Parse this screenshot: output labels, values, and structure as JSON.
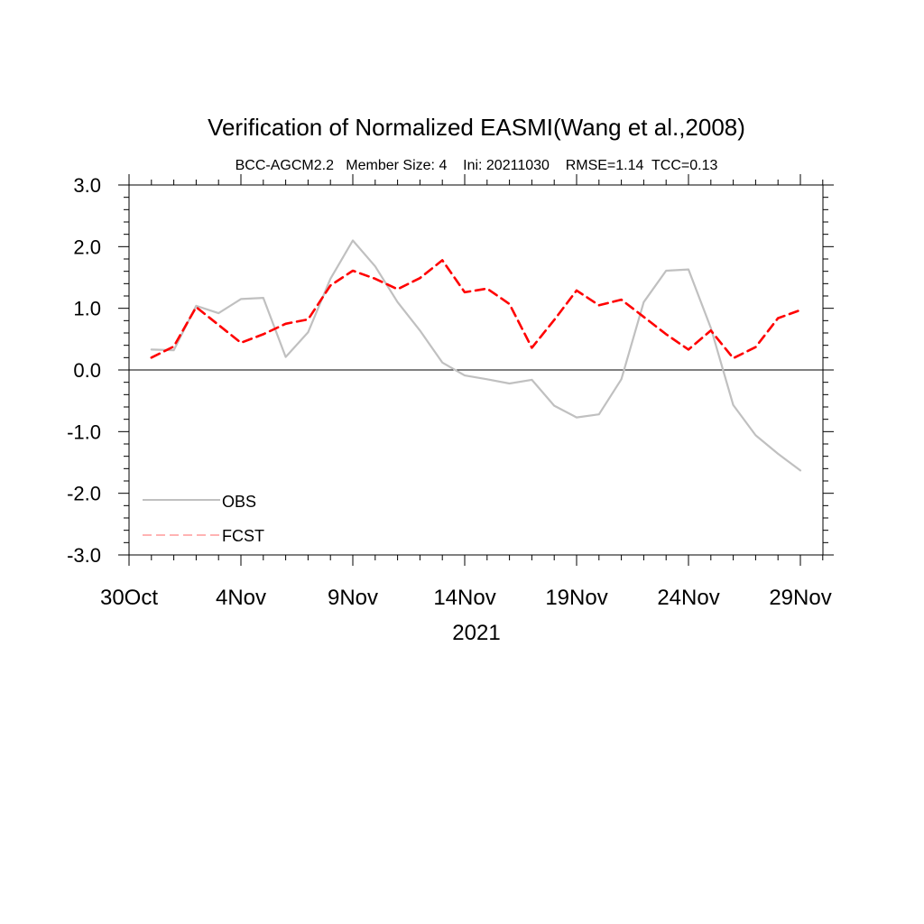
{
  "chart_data": {
    "type": "line",
    "title": "Verification of Normalized EASMI(Wang et al.,2008)",
    "subtitle": "BCC-AGCM2.2   Member Size: 4    Ini: 20211030    RMSE=1.14  TCC=0.13",
    "xlabel": "2021",
    "ylabel": "",
    "x_tick_labels": [
      "30Oct",
      "4Nov",
      "9Nov",
      "14Nov",
      "19Nov",
      "24Nov",
      "29Nov"
    ],
    "y_tick_labels": [
      "3.0",
      "2.0",
      "1.0",
      "0.0",
      "-1.0",
      "-2.0",
      "-3.0"
    ],
    "ylim": [
      -3.0,
      3.0
    ],
    "x": [
      "31Oct",
      "1Nov",
      "2Nov",
      "3Nov",
      "4Nov",
      "5Nov",
      "6Nov",
      "7Nov",
      "8Nov",
      "9Nov",
      "10Nov",
      "11Nov",
      "12Nov",
      "13Nov",
      "14Nov",
      "15Nov",
      "16Nov",
      "17Nov",
      "18Nov",
      "19Nov",
      "20Nov",
      "21Nov",
      "22Nov",
      "23Nov",
      "24Nov",
      "25Nov",
      "26Nov",
      "27Nov",
      "28Nov",
      "29Nov"
    ],
    "series": [
      {
        "name": "OBS",
        "color": "#c0c0c0",
        "style": "solid",
        "values": [
          0.33,
          0.32,
          1.04,
          0.92,
          1.15,
          1.17,
          0.21,
          0.61,
          1.48,
          2.1,
          1.68,
          1.1,
          0.64,
          0.12,
          -0.09,
          -0.15,
          -0.22,
          -0.16,
          -0.58,
          -0.77,
          -0.72,
          -0.15,
          1.1,
          1.61,
          1.63,
          0.68,
          -0.57,
          -1.06,
          -1.36,
          -1.63
        ]
      },
      {
        "name": "FCST",
        "color": "#ff0000",
        "style": "dashed",
        "values": [
          0.2,
          0.38,
          1.02,
          0.73,
          0.44,
          0.58,
          0.75,
          0.82,
          1.37,
          1.61,
          1.48,
          1.31,
          1.49,
          1.78,
          1.26,
          1.32,
          1.07,
          0.36,
          0.81,
          1.29,
          1.05,
          1.14,
          0.86,
          0.58,
          0.33,
          0.64,
          0.19,
          0.37,
          0.84,
          0.97
        ]
      }
    ],
    "zero_line": true,
    "grid": false,
    "legend_position": "bottom-left"
  }
}
